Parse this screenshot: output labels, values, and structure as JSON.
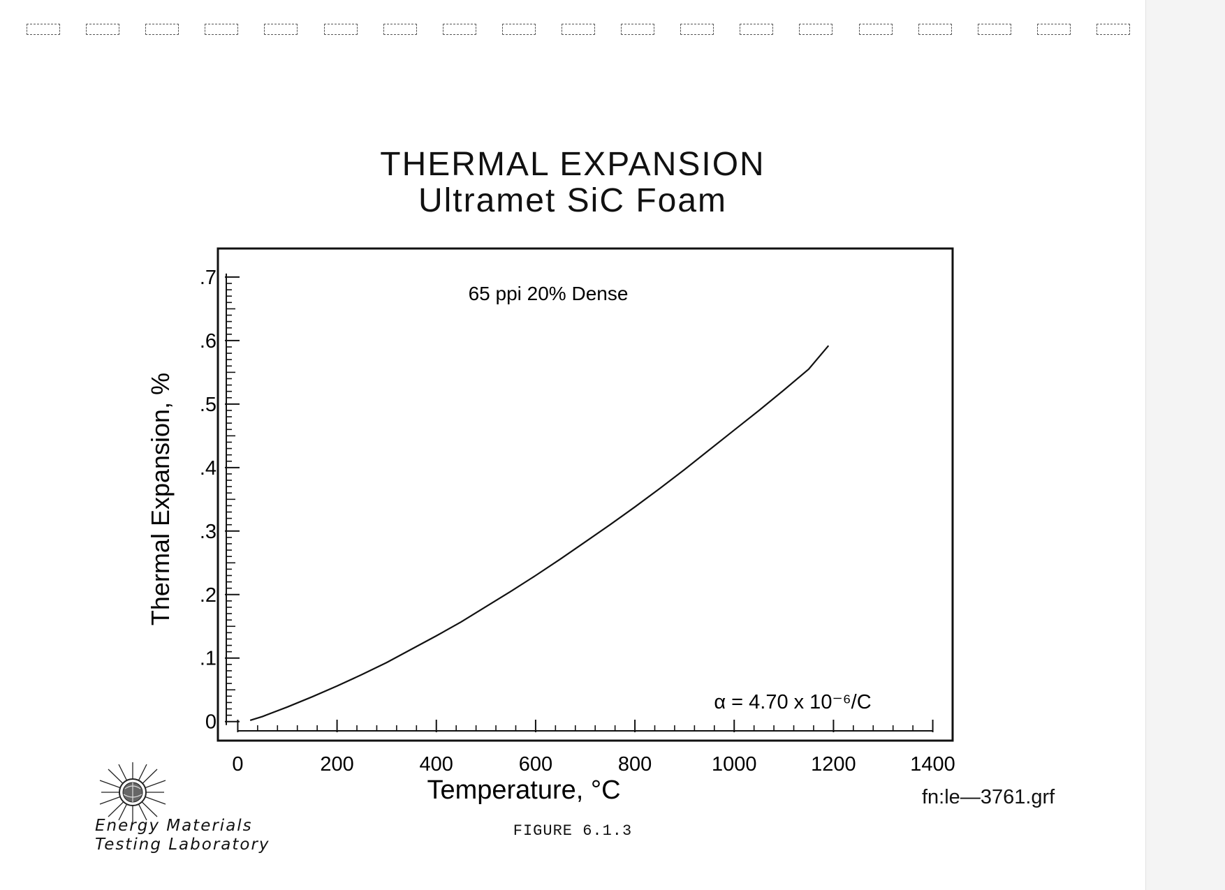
{
  "document": {
    "figure_caption": "FIGURE 6.1.3",
    "file_name": "fn:le—3761.grf",
    "lab_name_line1": "Energy Materials",
    "lab_name_line2": "Testing Laboratory",
    "logo_icon": "star-burst-globe-icon"
  },
  "chart_data": {
    "type": "line",
    "title": "THERMAL EXPANSION",
    "subtitle": "Ultramet SiC Foam",
    "xlabel": "Temperature, °C",
    "ylabel": "Thermal Expansion, %",
    "xlim": [
      -40,
      1440
    ],
    "ylim": [
      -0.03,
      0.745
    ],
    "x_ticks": [
      0,
      200,
      400,
      600,
      800,
      1000,
      1200,
      1400
    ],
    "x_tick_labels": [
      "0",
      "200",
      "400",
      "600",
      "800",
      "1000",
      "1200",
      "1400"
    ],
    "y_ticks": [
      0,
      0.1,
      0.2,
      0.3,
      0.4,
      0.5,
      0.6,
      0.7
    ],
    "y_tick_labels": [
      "0",
      ".1",
      ".2",
      ".3",
      ".4",
      ".5",
      ".6",
      ".7"
    ],
    "grid": false,
    "annotations": [
      {
        "id": "sample",
        "text": "65  ppi  20%  Dense"
      },
      {
        "id": "alpha",
        "text": "α  =  4.70  x  10⁻⁶/C"
      }
    ],
    "series": [
      {
        "x": [
          25,
          50,
          100,
          150,
          200,
          250,
          300,
          350,
          400,
          450,
          500,
          550,
          600,
          650,
          700,
          750,
          800,
          850,
          900,
          950,
          1000,
          1050,
          1100,
          1150,
          1190
        ],
        "y": [
          0.002,
          0.008,
          0.023,
          0.039,
          0.056,
          0.074,
          0.093,
          0.114,
          0.135,
          0.157,
          0.181,
          0.205,
          0.23,
          0.256,
          0.283,
          0.31,
          0.338,
          0.367,
          0.397,
          0.428,
          0.459,
          0.49,
          0.522,
          0.555,
          0.592
        ]
      }
    ]
  }
}
